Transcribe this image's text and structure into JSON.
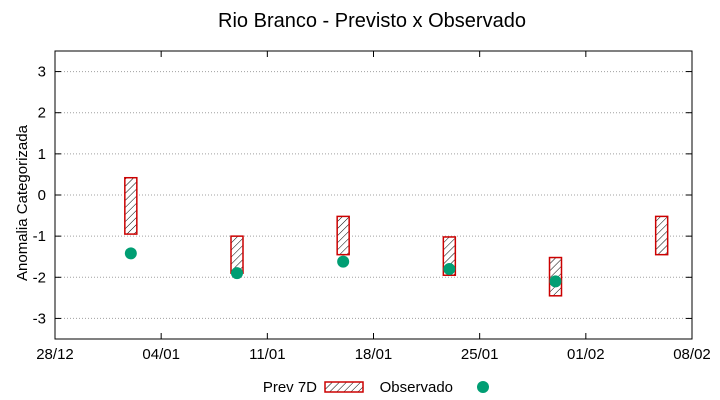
{
  "chart_data": {
    "type": "range-bar-and-scatter",
    "title": "Rio Branco - Previsto x Observado",
    "ylabel": "Anomalia Categorizada",
    "xlabel": "",
    "x_tick_labels": [
      "28/12",
      "04/01",
      "11/01",
      "18/01",
      "25/01",
      "01/02",
      "08/02"
    ],
    "x_range": [
      "28/12",
      "08/02"
    ],
    "y_ticks": [
      -3,
      -2,
      -1,
      0,
      1,
      2,
      3
    ],
    "ylim": [
      -3.5,
      3.5
    ],
    "grid": true,
    "legend_position": "bottom",
    "series": [
      {
        "name": "Prev 7D",
        "kind": "range-bar",
        "color": "#cc0000",
        "hatch": "diagonal",
        "points": [
          {
            "x": "02/01",
            "low": -0.95,
            "high": 0.42
          },
          {
            "x": "09/01",
            "low": -1.9,
            "high": -1.0
          },
          {
            "x": "16/01",
            "low": -1.45,
            "high": -0.52
          },
          {
            "x": "23/01",
            "low": -1.95,
            "high": -1.02
          },
          {
            "x": "30/01",
            "low": -2.45,
            "high": -1.52
          },
          {
            "x": "06/02",
            "low": -1.45,
            "high": -0.52
          }
        ]
      },
      {
        "name": "Observado",
        "kind": "scatter",
        "color": "#009e73",
        "points": [
          {
            "x": "02/01",
            "y": -1.42
          },
          {
            "x": "09/01",
            "y": -1.9
          },
          {
            "x": "16/01",
            "y": -1.62
          },
          {
            "x": "23/01",
            "y": -1.8
          },
          {
            "x": "30/01",
            "y": -2.1
          }
        ]
      }
    ]
  }
}
